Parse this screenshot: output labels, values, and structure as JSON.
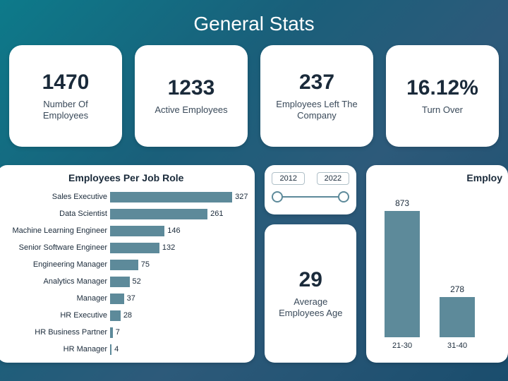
{
  "page_title": "General Stats",
  "background_gradient": [
    "#0d7a8a",
    "#1a5f7a",
    "#2d5a7a",
    "#1a4d6d"
  ],
  "card_bg": "#ffffff",
  "text_color": "#1a2a3a",
  "bar_color": "#5d8a9a",
  "stat_cards": [
    {
      "value": "1470",
      "label": "Number Of Employees"
    },
    {
      "value": "1233",
      "label": "Active Employees"
    },
    {
      "value": "237",
      "label": "Employees Left The Company"
    },
    {
      "value": "16.12%",
      "label": "Turn Over"
    }
  ],
  "jobrole_chart": {
    "type": "bar-horizontal",
    "title": "Employees Per Job Role",
    "max": 340,
    "items": [
      {
        "label": "Sales Executive",
        "value": 327
      },
      {
        "label": "Data Scientist",
        "value": 261
      },
      {
        "label": "Machine Learning Engineer",
        "value": 146
      },
      {
        "label": "Senior Software Engineer",
        "value": 132
      },
      {
        "label": "Engineering Manager",
        "value": 75
      },
      {
        "label": "Analytics Manager",
        "value": 52
      },
      {
        "label": "Manager",
        "value": 37
      },
      {
        "label": "HR Executive",
        "value": 28
      },
      {
        "label": "HR Business Partner",
        "value": 7
      },
      {
        "label": "HR Manager",
        "value": 4
      }
    ]
  },
  "year_slider": {
    "from": "2012",
    "to": "2022"
  },
  "avg_age": {
    "value": "29",
    "label": "Average Employees Age"
  },
  "age_chart": {
    "type": "bar-vertical",
    "title": "Employ",
    "max": 900,
    "items": [
      {
        "label": "21-30",
        "value": 873
      },
      {
        "label": "31-40",
        "value": 278
      }
    ]
  }
}
